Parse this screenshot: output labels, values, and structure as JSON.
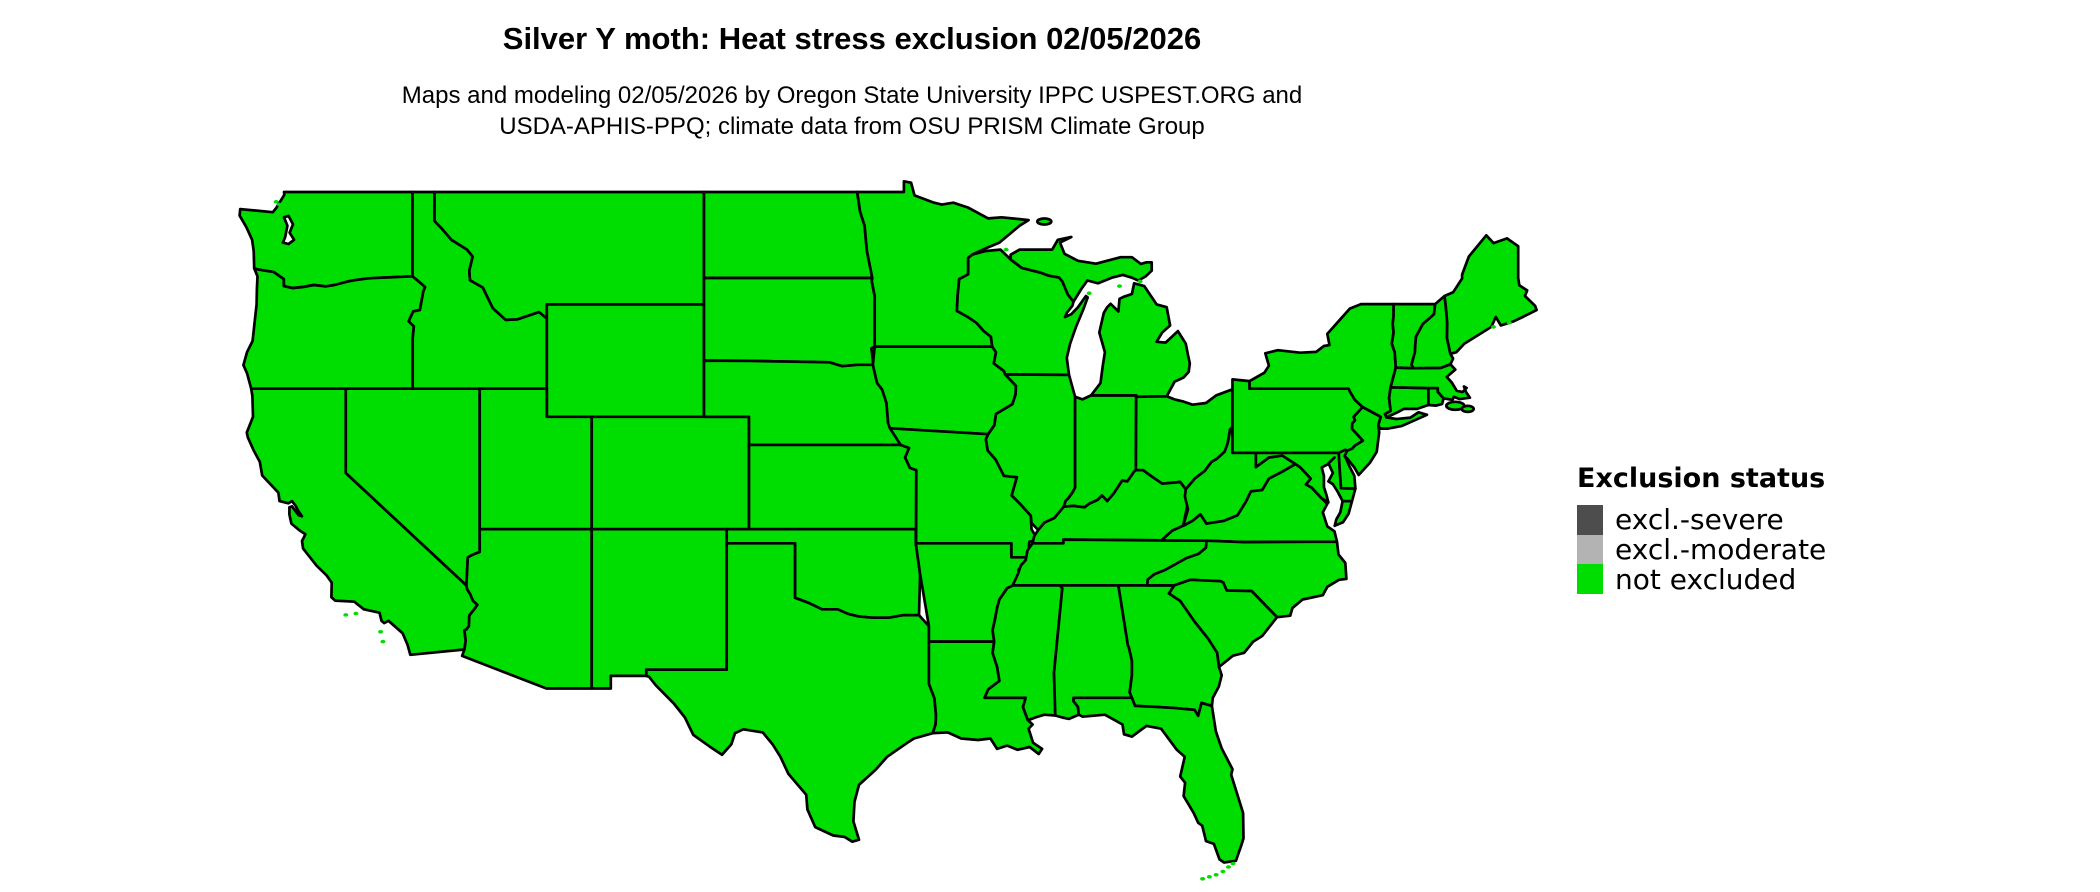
{
  "title": "Silver Y moth: Heat stress exclusion 02/05/2026",
  "subtitle_line1": "Maps and modeling 02/05/2026 by Oregon State University IPPC USPEST.ORG and",
  "subtitle_line2": "USDA-APHIS-PPQ; climate data from OSU PRISM Climate Group",
  "legend": {
    "title": "Exclusion status",
    "items": [
      {
        "label": "excl.-severe",
        "color": "#4d4d4d"
      },
      {
        "label": "excl.-moderate",
        "color": "#b3b3b3"
      },
      {
        "label": "not excluded",
        "color": "#00dd00"
      }
    ]
  },
  "chart_data": {
    "type": "heatmap",
    "title": "Silver Y moth: Heat stress exclusion 02/05/2026",
    "region": "contiguous United States",
    "categories": [
      "excl.-severe",
      "excl.-moderate",
      "not excluded"
    ],
    "category_colors": [
      "#4d4d4d",
      "#b3b3b3",
      "#00dd00"
    ],
    "all_states_status": "not excluded",
    "legend_position": "right"
  },
  "map": {
    "fill_color": "#00dd00",
    "border_color": "#000000",
    "water_color": "#ffffff",
    "background_color": "#ffffff"
  }
}
